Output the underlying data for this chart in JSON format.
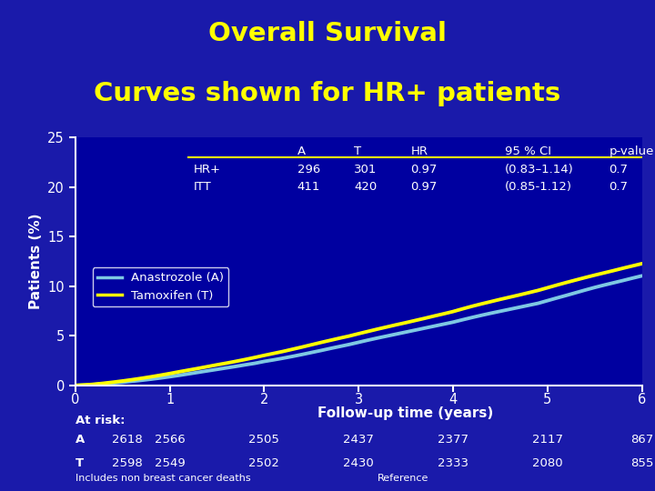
{
  "title_line1": "Overall Survival",
  "title_line2": "Curves shown for HR+ patients",
  "title_color": "#FFFF00",
  "title_fontsize": 21,
  "bg_color": "#1a1aaa",
  "plot_bg_color": "#0000a0",
  "header_bar_color": "#6ab4b4",
  "ylabel": "Patients (%)",
  "xlabel": "Follow-up time (years)",
  "ylim": [
    0,
    25
  ],
  "xlim": [
    0,
    6
  ],
  "yticks": [
    0,
    5,
    10,
    15,
    20,
    25
  ],
  "xticks": [
    0,
    1,
    2,
    3,
    4,
    5,
    6
  ],
  "anastrozole_color": "#7ec8e3",
  "tamoxifen_color": "#FFFF00",
  "table_header": [
    "",
    "A",
    "T",
    "HR",
    "95 % CI",
    "p-value"
  ],
  "table_row1": [
    "HR+",
    "296",
    "301",
    "0.97",
    "(0.83–1.14)",
    "0.7"
  ],
  "table_row2": [
    "ITT",
    "411",
    "420",
    "0.97",
    "(0.85-1.12)",
    "0.7"
  ],
  "at_risk_A_vals": [
    "2618",
    "2566",
    "2505",
    "2437",
    "2377",
    "2117",
    "867"
  ],
  "at_risk_T_vals": [
    "2598",
    "2549",
    "2502",
    "2430",
    "2333",
    "2080",
    "855"
  ],
  "footnote1": "Includes non breast cancer deaths",
  "footnote2": "Reference",
  "anastrozole_x": [
    0.0,
    0.1,
    0.2,
    0.3,
    0.4,
    0.5,
    0.6,
    0.7,
    0.8,
    0.9,
    1.0,
    1.1,
    1.2,
    1.3,
    1.4,
    1.5,
    1.6,
    1.7,
    1.8,
    1.9,
    2.0,
    2.1,
    2.2,
    2.3,
    2.4,
    2.5,
    2.6,
    2.7,
    2.8,
    2.9,
    3.0,
    3.1,
    3.2,
    3.3,
    3.4,
    3.5,
    3.6,
    3.7,
    3.8,
    3.9,
    4.0,
    4.1,
    4.2,
    4.3,
    4.4,
    4.5,
    4.6,
    4.7,
    4.8,
    4.9,
    5.0,
    5.1,
    5.2,
    5.3,
    5.4,
    5.5,
    5.6,
    5.7,
    5.8,
    5.9,
    6.0
  ],
  "anastrozole_y": [
    0.0,
    0.05,
    0.1,
    0.18,
    0.25,
    0.32,
    0.42,
    0.52,
    0.63,
    0.75,
    0.88,
    1.02,
    1.17,
    1.32,
    1.47,
    1.62,
    1.77,
    1.92,
    2.08,
    2.23,
    2.42,
    2.58,
    2.75,
    2.93,
    3.12,
    3.32,
    3.52,
    3.73,
    3.93,
    4.13,
    4.35,
    4.57,
    4.78,
    4.98,
    5.18,
    5.38,
    5.58,
    5.78,
    5.98,
    6.18,
    6.38,
    6.62,
    6.85,
    7.07,
    7.28,
    7.48,
    7.68,
    7.88,
    8.08,
    8.28,
    8.55,
    8.82,
    9.08,
    9.35,
    9.62,
    9.88,
    10.12,
    10.35,
    10.58,
    10.82,
    11.05
  ],
  "tamoxifen_x": [
    0.0,
    0.1,
    0.2,
    0.3,
    0.4,
    0.5,
    0.6,
    0.7,
    0.8,
    0.9,
    1.0,
    1.1,
    1.2,
    1.3,
    1.4,
    1.5,
    1.6,
    1.7,
    1.8,
    1.9,
    2.0,
    2.1,
    2.2,
    2.3,
    2.4,
    2.5,
    2.6,
    2.7,
    2.8,
    2.9,
    3.0,
    3.1,
    3.2,
    3.3,
    3.4,
    3.5,
    3.6,
    3.7,
    3.8,
    3.9,
    4.0,
    4.1,
    4.2,
    4.3,
    4.4,
    4.5,
    4.6,
    4.7,
    4.8,
    4.9,
    5.0,
    5.1,
    5.2,
    5.3,
    5.4,
    5.5,
    5.6,
    5.7,
    5.8,
    5.9,
    6.0
  ],
  "tamoxifen_y": [
    0.0,
    0.05,
    0.12,
    0.22,
    0.33,
    0.45,
    0.58,
    0.72,
    0.87,
    1.03,
    1.2,
    1.38,
    1.55,
    1.72,
    1.9,
    2.08,
    2.25,
    2.43,
    2.62,
    2.82,
    3.03,
    3.23,
    3.43,
    3.65,
    3.87,
    4.1,
    4.33,
    4.55,
    4.77,
    4.98,
    5.22,
    5.45,
    5.68,
    5.9,
    6.12,
    6.33,
    6.55,
    6.77,
    7.0,
    7.22,
    7.45,
    7.72,
    7.98,
    8.22,
    8.45,
    8.68,
    8.9,
    9.12,
    9.35,
    9.58,
    9.85,
    10.12,
    10.38,
    10.63,
    10.88,
    11.12,
    11.35,
    11.58,
    11.82,
    12.05,
    12.28
  ]
}
